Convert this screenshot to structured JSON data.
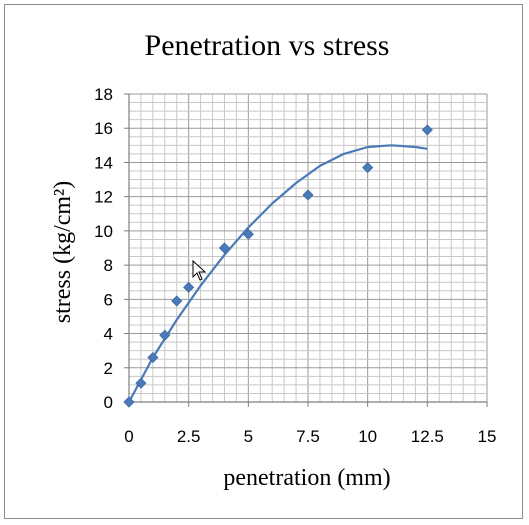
{
  "chart_data": {
    "type": "scatter",
    "title": "Penetration vs stress",
    "xlabel": "penetration (mm)",
    "ylabel": "stress (kg/cm²)",
    "xlim": [
      0,
      15
    ],
    "ylim": [
      0,
      18
    ],
    "x_ticks": [
      "0",
      "2.5",
      "5",
      "7.5",
      "10",
      "12.5",
      "15"
    ],
    "y_ticks": [
      "0",
      "2",
      "4",
      "6",
      "8",
      "10",
      "12",
      "14",
      "16",
      "18"
    ],
    "grid": true,
    "legend": "none",
    "series": [
      {
        "marker": "diamond",
        "color": "#4a7ab8",
        "x": [
          0,
          0.5,
          1,
          1.5,
          2,
          2.5,
          4,
          5,
          7.5,
          10,
          12.5
        ],
        "y": [
          0,
          1.1,
          2.6,
          3.9,
          5.9,
          6.7,
          9.0,
          9.8,
          12.1,
          13.7,
          15.9
        ]
      }
    ],
    "trendline": {
      "type": "polynomial",
      "color": "#4a7ab8",
      "x": [
        0,
        1,
        2,
        3,
        4,
        5,
        6,
        7,
        8,
        9,
        10,
        11,
        12,
        12.5
      ],
      "y": [
        0,
        2.6,
        4.8,
        6.8,
        8.6,
        10.2,
        11.6,
        12.8,
        13.8,
        14.5,
        14.9,
        15.0,
        14.9,
        14.8
      ]
    }
  }
}
